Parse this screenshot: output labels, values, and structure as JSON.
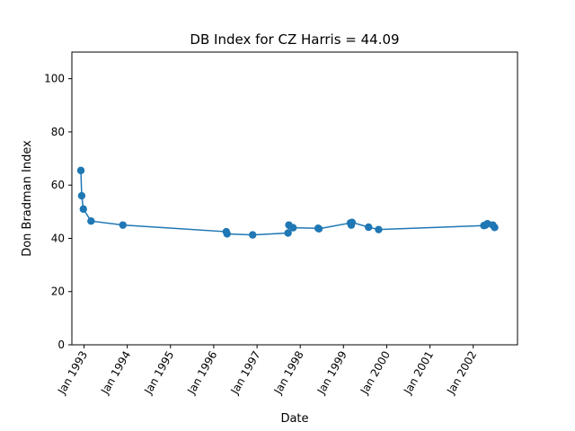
{
  "chart_data": {
    "type": "line",
    "title": "DB Index for CZ Harris = 44.09",
    "xlabel": "Date",
    "ylabel": "Don Bradman Index",
    "ylim": [
      0,
      110
    ],
    "xlim": [
      "1992-09-20",
      "2003-01-10"
    ],
    "yticks": [
      0,
      20,
      40,
      60,
      80,
      100
    ],
    "xticks": [
      {
        "date": "1993-01-01",
        "label": "Jan 1993"
      },
      {
        "date": "1994-01-01",
        "label": "Jan 1994"
      },
      {
        "date": "1995-01-01",
        "label": "Jan 1995"
      },
      {
        "date": "1996-01-01",
        "label": "Jan 1996"
      },
      {
        "date": "1997-01-01",
        "label": "Jan 1997"
      },
      {
        "date": "1998-01-01",
        "label": "Jan 1998"
      },
      {
        "date": "1999-01-01",
        "label": "Jan 1999"
      },
      {
        "date": "2000-01-01",
        "label": "Jan 2000"
      },
      {
        "date": "2001-01-01",
        "label": "Jan 2001"
      },
      {
        "date": "2002-01-01",
        "label": "Jan 2002"
      }
    ],
    "grid": false,
    "color": "#1f77b4",
    "series": [
      {
        "points": [
          {
            "x": "1992-12-05",
            "y": 65.5
          },
          {
            "x": "1992-12-12",
            "y": 56.0
          },
          {
            "x": "1992-12-26",
            "y": 51.0
          },
          {
            "x": "1993-03-01",
            "y": 46.5
          },
          {
            "x": "1993-11-25",
            "y": 45.0
          },
          {
            "x": "1996-04-16",
            "y": 42.5
          },
          {
            "x": "1996-04-23",
            "y": 41.7
          },
          {
            "x": "1996-11-25",
            "y": 41.3
          },
          {
            "x": "1997-09-20",
            "y": 42.0
          },
          {
            "x": "1997-09-27",
            "y": 45.0
          },
          {
            "x": "1997-11-01",
            "y": 44.0
          },
          {
            "x": "1998-06-01",
            "y": 43.8
          },
          {
            "x": "1998-06-08",
            "y": 43.6
          },
          {
            "x": "1999-03-01",
            "y": 45.8
          },
          {
            "x": "1999-03-08",
            "y": 45.0
          },
          {
            "x": "1999-03-15",
            "y": 46.0
          },
          {
            "x": "1999-08-01",
            "y": 44.2
          },
          {
            "x": "1999-10-25",
            "y": 43.3
          },
          {
            "x": "2002-04-01",
            "y": 44.8
          },
          {
            "x": "2002-04-15",
            "y": 45.0
          },
          {
            "x": "2002-05-01",
            "y": 45.5
          },
          {
            "x": "2002-06-15",
            "y": 45.0
          },
          {
            "x": "2002-07-01",
            "y": 44.1
          }
        ]
      }
    ]
  }
}
